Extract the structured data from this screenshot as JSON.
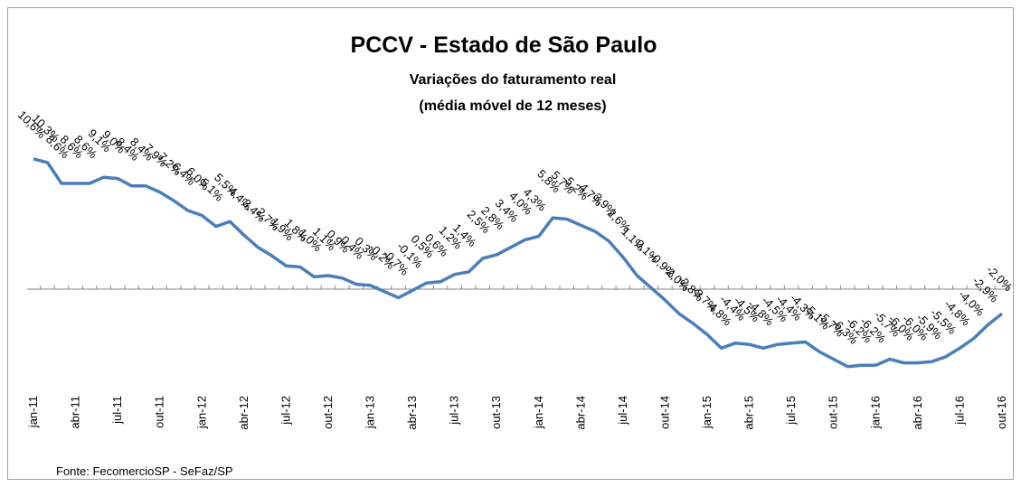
{
  "chart_data": {
    "type": "line",
    "title": "PCCV - Estado de São Paulo",
    "subtitle": [
      "Variações do faturamento real",
      "(média móvel de 12 meses)"
    ],
    "source": "Fonte: FecomercioSP - SeFaz/SP",
    "categories": [
      "jan-11",
      null,
      null,
      "abr-11",
      null,
      null,
      "jul-11",
      null,
      null,
      "out-11",
      null,
      null,
      "jan-12",
      null,
      null,
      "abr-12",
      null,
      null,
      "jul-12",
      null,
      null,
      "out-12",
      null,
      null,
      "jan-13",
      null,
      null,
      "abr-13",
      null,
      null,
      "jul-13",
      null,
      null,
      "out-13",
      null,
      null,
      "jan-14",
      null,
      null,
      "abr-14",
      null,
      null,
      "jul-14",
      null,
      null,
      "out-14",
      null,
      null,
      "jan-15",
      null,
      null,
      "abr-15",
      null,
      null,
      "jul-15",
      null,
      null,
      "out-15",
      null,
      null,
      "jan-16",
      null,
      null,
      "abr-16",
      null,
      null,
      "jul-16",
      null,
      null,
      "out-16"
    ],
    "values": [
      10.6,
      10.3,
      8.6,
      8.6,
      8.6,
      9.1,
      9.0,
      8.4,
      8.4,
      7.9,
      7.2,
      6.4,
      6.0,
      5.1,
      5.5,
      4.4,
      3.4,
      2.7,
      1.9,
      1.8,
      1.0,
      1.1,
      0.9,
      0.4,
      0.3,
      -0.2,
      -0.7,
      -0.1,
      0.5,
      0.6,
      1.2,
      1.4,
      2.5,
      2.8,
      3.4,
      4.0,
      4.3,
      5.8,
      5.7,
      5.2,
      4.7,
      3.9,
      2.6,
      1.1,
      0.1,
      -0.9,
      -2.0,
      -2.8,
      -3.7,
      -4.8,
      -4.4,
      -4.5,
      -4.8,
      -4.5,
      -4.4,
      -4.3,
      -5.1,
      -5.7,
      -6.3,
      -6.2,
      -6.2,
      -5.7,
      -6.0,
      -6.0,
      -5.9,
      -5.5,
      -4.8,
      -4.0,
      -2.9,
      -2.0
    ],
    "value_labels": [
      "10,6%",
      "10,3%",
      "8,6%",
      "8,6%",
      "8,6%",
      "9,1%",
      "9,0%",
      "8,4%",
      "8,4%",
      "7,9%",
      "7,2%",
      "6,4%",
      "6,0%",
      "5,1%",
      "5,5%",
      "4,4%",
      "3,4%",
      "2,7%",
      "1,9%",
      "1,8%",
      "1,0%",
      "1,1%",
      "0,9%",
      "0,4%",
      "0,3%",
      "-0,2%",
      "-0,7%",
      "-0,1%",
      "0,5%",
      "0,6%",
      "1,2%",
      "1,4%",
      "2,5%",
      "2,8%",
      "3,4%",
      "4,0%",
      "4,3%",
      "5,8%",
      "5,7%",
      "5,2%",
      "4,7%",
      "3,9%",
      "2,6%",
      "1,1%",
      "0,1%",
      "-0,9%",
      "-2,0%",
      "-2,8%",
      "-3,7%",
      "-4,8%",
      "-4,4%",
      "-4,5%",
      "-4,8%",
      "-4,5%",
      "-4,4%",
      "-4,3%",
      "-5,1%",
      "-5,7%",
      "-6,3%",
      "-6,2%",
      "-6,2%",
      "-5,7%",
      "-6,0%",
      "-6,0%",
      "-5,9%",
      "-5,5%",
      "-4,8%",
      "-4,0%",
      "-2,9%",
      "-2,0%"
    ],
    "color": "#4a7ebb",
    "ylim": [
      -7,
      11
    ]
  }
}
